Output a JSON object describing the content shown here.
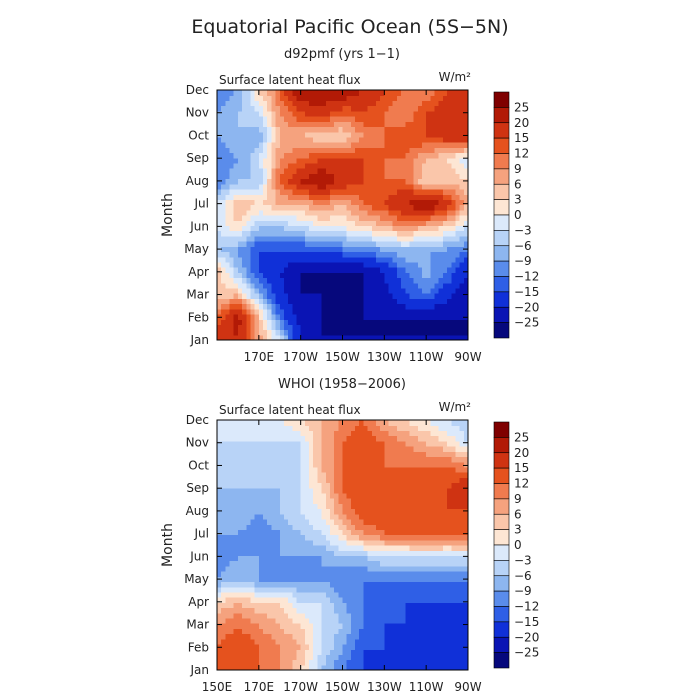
{
  "title": "Equatorial Pacific Ocean (5S−5N)",
  "colorbar": {
    "labels": [
      "25",
      "20",
      "15",
      "12",
      "9",
      "6",
      "3",
      "0",
      "−3",
      "−6",
      "−9",
      "−12",
      "−15",
      "−20",
      "−25"
    ],
    "colors": [
      "#7f0000",
      "#b21a06",
      "#cf3312",
      "#e5521e",
      "#f07b4f",
      "#f5a27e",
      "#fac6aa",
      "#fde6d4",
      "#dbe9fb",
      "#b8d3f7",
      "#8db6f0",
      "#5a8ceb",
      "#2f5fe6",
      "#1030d8",
      "#0a14b4",
      "#06087c"
    ]
  },
  "chart_data": [
    {
      "type": "heatmap",
      "subtitle": "d92pmf (yrs 1−1)",
      "panel_label": "Surface latent heat flux",
      "unit_label": "W/m²",
      "ylabel": "Month",
      "y_ticks": [
        "Jan",
        "Feb",
        "Mar",
        "Apr",
        "May",
        "Jun",
        "Jul",
        "Aug",
        "Sep",
        "Oct",
        "Nov",
        "Dec"
      ],
      "x_ticks": [
        "170E",
        "170W",
        "150W",
        "130W",
        "110W",
        "90W"
      ],
      "x_tick_positions_deg": [
        170,
        190,
        210,
        230,
        250,
        270
      ],
      "xlim": [
        150,
        270
      ],
      "months": [
        "Jan",
        "Feb",
        "Mar",
        "Apr",
        "May",
        "Jun",
        "Jul",
        "Aug",
        "Sep",
        "Oct",
        "Nov",
        "Dec"
      ],
      "lon": [
        150,
        160,
        170,
        180,
        190,
        200,
        210,
        220,
        230,
        240,
        250,
        260,
        270
      ],
      "values": [
        [
          18,
          20,
          8,
          -3,
          -20,
          -25,
          -25,
          -25,
          -25,
          -25,
          -25,
          -25,
          -25
        ],
        [
          12,
          22,
          5,
          -12,
          -22,
          -25,
          -25,
          -25,
          -25,
          -25,
          -25,
          -25,
          -25
        ],
        [
          3,
          6,
          -8,
          -18,
          -25,
          -25,
          -25,
          -25,
          -22,
          -15,
          -12,
          -18,
          -25
        ],
        [
          6,
          -6,
          -15,
          -20,
          -25,
          -25,
          -25,
          -25,
          -20,
          -12,
          -8,
          -12,
          -20
        ],
        [
          -5,
          -9,
          -15,
          -15,
          -15,
          -15,
          -12,
          -10,
          -9,
          -6,
          -9,
          -9,
          -12
        ],
        [
          -3,
          3,
          -6,
          -6,
          -3,
          0,
          0,
          3,
          6,
          9,
          6,
          3,
          -3
        ],
        [
          -3,
          6,
          3,
          6,
          6,
          9,
          6,
          12,
          15,
          20,
          25,
          18,
          6
        ],
        [
          -12,
          -6,
          -6,
          12,
          20,
          25,
          18,
          15,
          12,
          12,
          3,
          6,
          3
        ],
        [
          -12,
          -9,
          -3,
          9,
          12,
          15,
          15,
          15,
          12,
          12,
          6,
          3,
          -3
        ],
        [
          -9,
          -6,
          -9,
          6,
          6,
          3,
          3,
          9,
          12,
          15,
          15,
          18,
          20
        ],
        [
          -9,
          -6,
          -3,
          9,
          15,
          18,
          12,
          15,
          12,
          9,
          15,
          18,
          20
        ],
        [
          -12,
          -9,
          3,
          12,
          25,
          25,
          25,
          20,
          15,
          12,
          9,
          15,
          15
        ]
      ]
    },
    {
      "type": "heatmap",
      "subtitle": "WHOI (1958−2006)",
      "panel_label": "Surface latent heat flux",
      "unit_label": "W/m²",
      "ylabel": "Month",
      "y_ticks": [
        "Jan",
        "Feb",
        "Mar",
        "Apr",
        "May",
        "Jun",
        "Jul",
        "Aug",
        "Sep",
        "Oct",
        "Nov",
        "Dec"
      ],
      "x_ticks": [
        "150E",
        "170E",
        "170W",
        "150W",
        "130W",
        "110W",
        "90W"
      ],
      "x_tick_positions_deg": [
        150,
        170,
        190,
        210,
        230,
        250,
        270
      ],
      "xlim": [
        150,
        270
      ],
      "months": [
        "Jan",
        "Feb",
        "Mar",
        "Apr",
        "May",
        "Jun",
        "Jul",
        "Aug",
        "Sep",
        "Oct",
        "Nov",
        "Dec"
      ],
      "lon": [
        150,
        160,
        170,
        180,
        190,
        200,
        210,
        220,
        230,
        240,
        250,
        260,
        270
      ],
      "values": [
        [
          12,
          15,
          12,
          9,
          3,
          -6,
          -12,
          -15,
          -15,
          -18,
          -20,
          -18,
          -20
        ],
        [
          12,
          15,
          12,
          9,
          6,
          -3,
          -9,
          -15,
          -15,
          -15,
          -15,
          -15,
          -20
        ],
        [
          9,
          12,
          9,
          6,
          3,
          -3,
          -6,
          -12,
          -15,
          -15,
          -15,
          -15,
          -18
        ],
        [
          3,
          6,
          3,
          3,
          -3,
          -3,
          -9,
          -12,
          -12,
          -15,
          -15,
          -15,
          -15
        ],
        [
          -9,
          -6,
          -9,
          -9,
          -9,
          -9,
          -12,
          -12,
          -12,
          -12,
          -12,
          -12,
          -12
        ],
        [
          -12,
          -9,
          -9,
          -9,
          -9,
          -9,
          -6,
          -6,
          -3,
          -3,
          -3,
          -3,
          -3
        ],
        [
          -9,
          -9,
          -12,
          -9,
          -6,
          -3,
          3,
          9,
          12,
          12,
          15,
          12,
          15
        ],
        [
          -6,
          -6,
          -9,
          -6,
          -3,
          0,
          9,
          15,
          15,
          15,
          15,
          15,
          15
        ],
        [
          -6,
          -6,
          -6,
          -6,
          -3,
          3,
          12,
          15,
          15,
          15,
          12,
          15,
          20
        ],
        [
          -6,
          -3,
          -3,
          -3,
          -3,
          6,
          12,
          15,
          12,
          12,
          12,
          12,
          9
        ],
        [
          -3,
          -3,
          -3,
          -3,
          -3,
          6,
          12,
          15,
          12,
          9,
          6,
          3,
          -3
        ],
        [
          0,
          0,
          0,
          0,
          3,
          6,
          9,
          12,
          6,
          3,
          0,
          -3,
          -6
        ]
      ]
    }
  ]
}
